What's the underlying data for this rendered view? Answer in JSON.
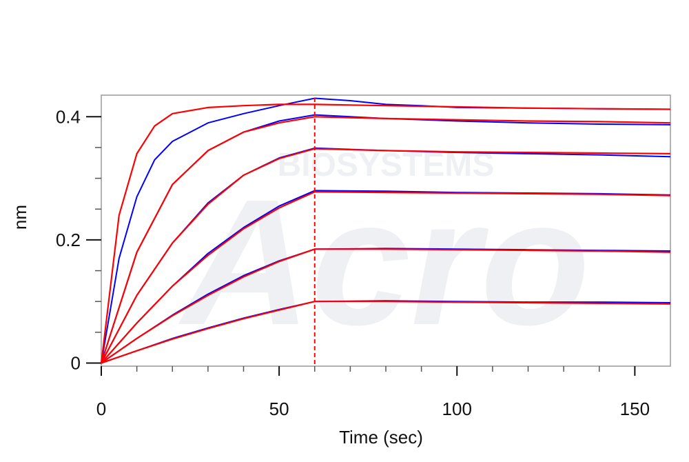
{
  "chart_data": {
    "type": "line",
    "xlabel": "Time (sec)",
    "ylabel": "nm",
    "xlim": [
      0,
      160
    ],
    "ylim": [
      -0.005,
      0.435
    ],
    "x_ticks": [
      0,
      50,
      100,
      150
    ],
    "x_tick_labels": [
      "0",
      "50",
      "100",
      "150"
    ],
    "y_ticks": [
      0,
      0.2,
      0.4
    ],
    "y_tick_labels": [
      "0",
      "0.2",
      "0.4"
    ],
    "x_minor_step": 10,
    "y_minor_step": 0.05,
    "grid": false,
    "legend": "none",
    "association_end": 60,
    "marker_line": {
      "x": 60,
      "style": "dashed",
      "color": "#ff0000"
    },
    "colors": {
      "measured": "#0000ff",
      "fit": "#ff0000",
      "axis": "#999999"
    },
    "watermark_text": "BIOSYSTEMS",
    "watermark_logo": "Acro",
    "curves": [
      {
        "curve_type": "fit",
        "x": [
          0,
          5,
          10,
          15,
          20,
          30,
          40,
          50,
          60,
          80,
          100,
          120,
          140,
          160
        ],
        "y": [
          0.0,
          0.24,
          0.34,
          0.385,
          0.405,
          0.415,
          0.418,
          0.42,
          0.42,
          0.418,
          0.416,
          0.414,
          0.413,
          0.412
        ]
      },
      {
        "curve_type": "measured",
        "x": [
          0,
          5,
          10,
          15,
          20,
          30,
          40,
          50,
          55,
          60,
          70,
          80,
          90,
          100,
          120,
          140,
          160
        ],
        "y": [
          0.0,
          0.17,
          0.27,
          0.33,
          0.36,
          0.39,
          0.405,
          0.418,
          0.424,
          0.43,
          0.426,
          0.42,
          0.418,
          0.415,
          0.414,
          0.413,
          0.412
        ]
      },
      {
        "curve_type": "fit",
        "x": [
          0,
          10,
          20,
          30,
          40,
          50,
          60,
          80,
          100,
          120,
          140,
          160
        ],
        "y": [
          0.0,
          0.18,
          0.29,
          0.345,
          0.375,
          0.39,
          0.4,
          0.397,
          0.395,
          0.393,
          0.392,
          0.39
        ]
      },
      {
        "curve_type": "measured",
        "x": [
          0,
          10,
          20,
          30,
          40,
          50,
          60,
          80,
          100,
          120,
          140,
          160
        ],
        "y": [
          0.0,
          0.18,
          0.29,
          0.345,
          0.375,
          0.393,
          0.403,
          0.397,
          0.393,
          0.39,
          0.388,
          0.387
        ]
      },
      {
        "curve_type": "fit",
        "x": [
          0,
          10,
          20,
          30,
          40,
          50,
          60,
          80,
          100,
          120,
          140,
          160
        ],
        "y": [
          0.0,
          0.11,
          0.195,
          0.258,
          0.305,
          0.332,
          0.348,
          0.345,
          0.343,
          0.342,
          0.341,
          0.34
        ]
      },
      {
        "curve_type": "measured",
        "x": [
          0,
          10,
          20,
          30,
          40,
          50,
          60,
          80,
          100,
          120,
          140,
          160
        ],
        "y": [
          0.0,
          0.11,
          0.195,
          0.26,
          0.305,
          0.333,
          0.349,
          0.345,
          0.342,
          0.34,
          0.338,
          0.335
        ]
      },
      {
        "curve_type": "fit",
        "x": [
          0,
          10,
          20,
          30,
          40,
          50,
          60,
          80,
          100,
          120,
          140,
          160
        ],
        "y": [
          0.0,
          0.065,
          0.125,
          0.175,
          0.218,
          0.252,
          0.278,
          0.277,
          0.276,
          0.275,
          0.274,
          0.272
        ]
      },
      {
        "curve_type": "measured",
        "x": [
          0,
          10,
          20,
          30,
          40,
          50,
          60,
          80,
          100,
          120,
          140,
          160
        ],
        "y": [
          0.0,
          0.065,
          0.125,
          0.178,
          0.22,
          0.255,
          0.28,
          0.279,
          0.277,
          0.276,
          0.275,
          0.273
        ]
      },
      {
        "curve_type": "fit",
        "x": [
          0,
          10,
          20,
          30,
          40,
          50,
          60,
          80,
          100,
          120,
          140,
          160
        ],
        "y": [
          0.0,
          0.04,
          0.077,
          0.11,
          0.14,
          0.165,
          0.185,
          0.185,
          0.184,
          0.183,
          0.182,
          0.18
        ]
      },
      {
        "curve_type": "measured",
        "x": [
          0,
          10,
          20,
          30,
          40,
          50,
          60,
          80,
          100,
          120,
          140,
          160
        ],
        "y": [
          0.0,
          0.04,
          0.078,
          0.112,
          0.142,
          0.166,
          0.185,
          0.186,
          0.185,
          0.184,
          0.183,
          0.182
        ]
      },
      {
        "curve_type": "fit",
        "x": [
          0,
          10,
          20,
          30,
          40,
          50,
          60,
          80,
          100,
          120,
          140,
          160
        ],
        "y": [
          0.0,
          0.02,
          0.039,
          0.056,
          0.072,
          0.086,
          0.1,
          0.1,
          0.099,
          0.098,
          0.097,
          0.096
        ]
      },
      {
        "curve_type": "measured",
        "x": [
          0,
          10,
          20,
          30,
          40,
          50,
          60,
          80,
          100,
          120,
          140,
          160
        ],
        "y": [
          0.0,
          0.02,
          0.04,
          0.057,
          0.073,
          0.087,
          0.1,
          0.101,
          0.1,
          0.099,
          0.099,
          0.098
        ]
      }
    ]
  }
}
